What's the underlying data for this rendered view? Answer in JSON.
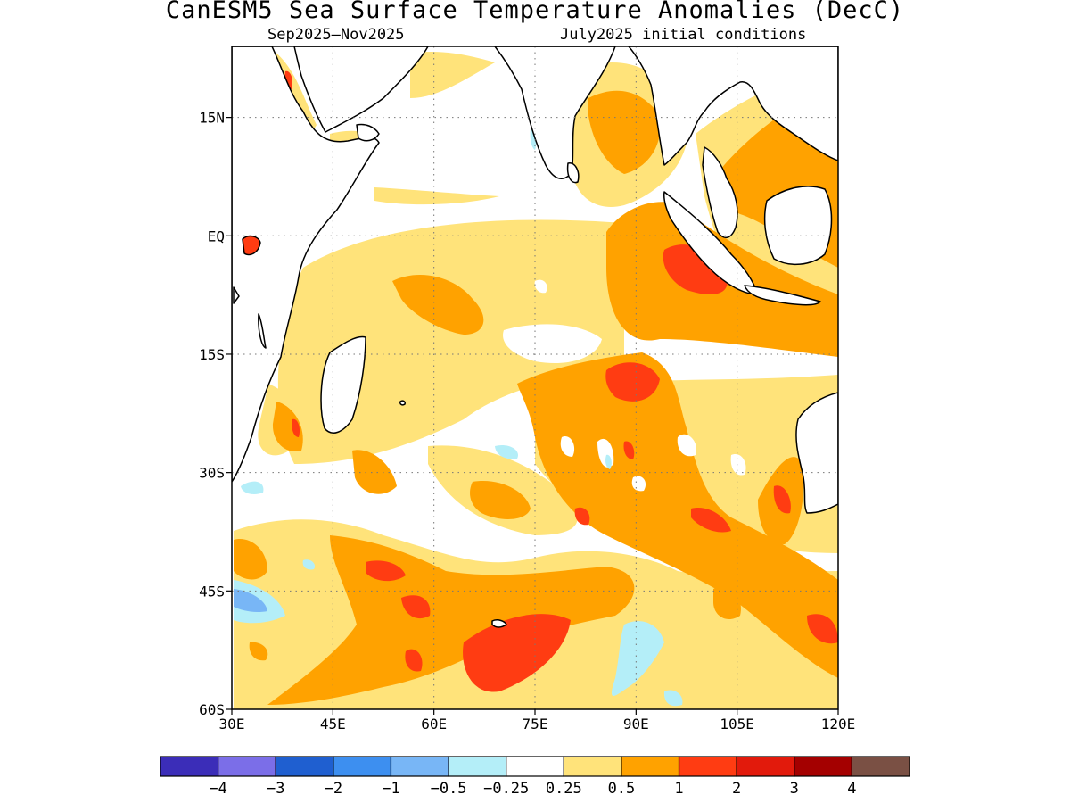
{
  "title": "CanESM5 Sea Surface Temperature Anomalies (DecC)",
  "subtitle_left": "Sep2025–Nov2025",
  "subtitle_right": "July2025 initial conditions",
  "map": {
    "lon_range": [
      30,
      120
    ],
    "lat_range": [
      -60,
      24
    ],
    "x_ticks": [
      {
        "value": 30,
        "label": "30E"
      },
      {
        "value": 45,
        "label": "45E"
      },
      {
        "value": 60,
        "label": "60E"
      },
      {
        "value": 75,
        "label": "75E"
      },
      {
        "value": 90,
        "label": "90E"
      },
      {
        "value": 105,
        "label": "105E"
      },
      {
        "value": 120,
        "label": "120E"
      }
    ],
    "y_ticks": [
      {
        "value": 15,
        "label": "15N"
      },
      {
        "value": 0,
        "label": "EQ"
      },
      {
        "value": -15,
        "label": "15S"
      },
      {
        "value": -30,
        "label": "30S"
      },
      {
        "value": -45,
        "label": "45S"
      },
      {
        "value": -60,
        "label": "60S"
      }
    ],
    "grid": "dotted",
    "land_color": "#ffffff",
    "coastline_color": "#000000"
  },
  "colorbar": {
    "labels": [
      "−4",
      "−3",
      "−2",
      "−1",
      "−0.5",
      "−0.25",
      "0.25",
      "0.5",
      "1",
      "2",
      "3",
      "4"
    ],
    "colors": [
      "#3b2db8",
      "#7b6ee8",
      "#1f5fd0",
      "#3d8ff0",
      "#78b6f6",
      "#b4eef8",
      "#ffffff",
      "#ffe37a",
      "#ffa200",
      "#ff3c12",
      "#e21a0c",
      "#a40000",
      "#7a5044"
    ]
  },
  "anomaly_colors": {
    "light": "#ffe37a",
    "medium": "#ffa200",
    "strong": "#ff3c12",
    "cool_weak": "#b4eef8",
    "cool": "#78b6f6"
  }
}
